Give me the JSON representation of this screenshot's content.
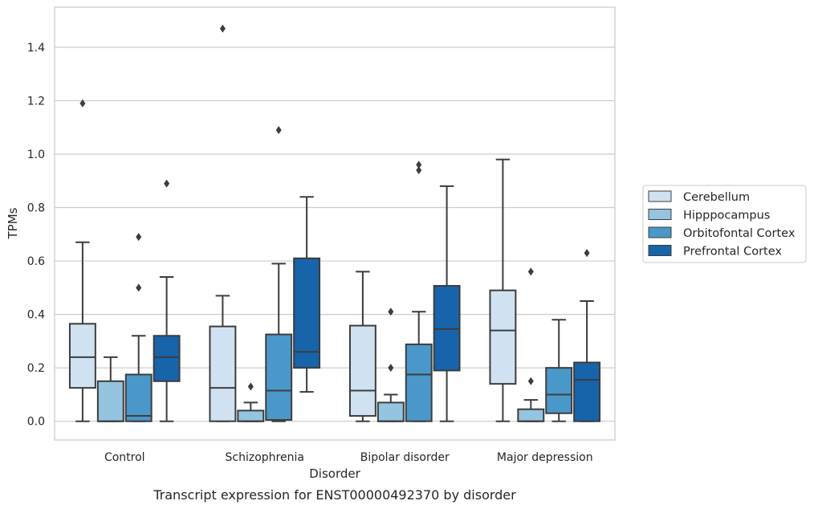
{
  "chart_data": {
    "type": "box",
    "caption": "Transcript expression for ENST00000492370 by disorder",
    "xlabel": "Disorder",
    "ylabel": "TPMs",
    "ylim": [
      -0.07,
      1.55
    ],
    "yticks": [
      "0.0",
      "0.2",
      "0.4",
      "0.6",
      "0.8",
      "1.0",
      "1.2",
      "1.4"
    ],
    "grid": "horizontal",
    "legend_position": "right",
    "categories": [
      "Control",
      "Schizophrenia",
      "Bipolar disorder",
      "Major depression"
    ],
    "series": [
      {
        "name": "Cerebellum",
        "color": "#d0e1f2",
        "boxes": [
          {
            "whisker_low": 0.0,
            "q1": 0.125,
            "median": 0.24,
            "q3": 0.365,
            "whisker_high": 0.67,
            "outliers": [
              1.19
            ]
          },
          {
            "whisker_low": 0.0,
            "q1": 0.0,
            "median": 0.125,
            "q3": 0.355,
            "whisker_high": 0.47,
            "outliers": [
              1.47
            ]
          },
          {
            "whisker_low": 0.0,
            "q1": 0.02,
            "median": 0.115,
            "q3": 0.358,
            "whisker_high": 0.56,
            "outliers": []
          },
          {
            "whisker_low": 0.0,
            "q1": 0.14,
            "median": 0.34,
            "q3": 0.49,
            "whisker_high": 0.98,
            "outliers": []
          }
        ]
      },
      {
        "name": "Hipppocampus",
        "color": "#94c4df",
        "boxes": [
          {
            "whisker_low": 0.0,
            "q1": 0.0,
            "median": 0.0,
            "q3": 0.15,
            "whisker_high": 0.24,
            "outliers": []
          },
          {
            "whisker_low": 0.0,
            "q1": 0.0,
            "median": 0.0,
            "q3": 0.04,
            "whisker_high": 0.07,
            "outliers": [
              0.13
            ]
          },
          {
            "whisker_low": 0.0,
            "q1": 0.0,
            "median": 0.0,
            "q3": 0.07,
            "whisker_high": 0.1,
            "outliers": [
              0.2,
              0.41
            ]
          },
          {
            "whisker_low": 0.0,
            "q1": 0.0,
            "median": 0.0,
            "q3": 0.045,
            "whisker_high": 0.08,
            "outliers": [
              0.15,
              0.56
            ]
          }
        ]
      },
      {
        "name": "Orbitofontal Cortex",
        "color": "#4a98c9",
        "boxes": [
          {
            "whisker_low": 0.0,
            "q1": 0.0,
            "median": 0.02,
            "q3": 0.175,
            "whisker_high": 0.32,
            "outliers": [
              0.5,
              0.69
            ]
          },
          {
            "whisker_low": 0.0,
            "q1": 0.005,
            "median": 0.115,
            "q3": 0.325,
            "whisker_high": 0.59,
            "outliers": [
              1.09
            ]
          },
          {
            "whisker_low": 0.0,
            "q1": 0.0,
            "median": 0.175,
            "q3": 0.288,
            "whisker_high": 0.41,
            "outliers": [
              0.94,
              0.96
            ]
          },
          {
            "whisker_low": 0.0,
            "q1": 0.03,
            "median": 0.1,
            "q3": 0.2,
            "whisker_high": 0.38,
            "outliers": []
          }
        ]
      },
      {
        "name": "Prefrontal Cortex",
        "color": "#1764ab",
        "boxes": [
          {
            "whisker_low": 0.0,
            "q1": 0.15,
            "median": 0.24,
            "q3": 0.32,
            "whisker_high": 0.54,
            "outliers": [
              0.89
            ]
          },
          {
            "whisker_low": 0.11,
            "q1": 0.2,
            "median": 0.26,
            "q3": 0.61,
            "whisker_high": 0.84,
            "outliers": []
          },
          {
            "whisker_low": 0.0,
            "q1": 0.19,
            "median": 0.345,
            "q3": 0.507,
            "whisker_high": 0.88,
            "outliers": []
          },
          {
            "whisker_low": 0.0,
            "q1": 0.0,
            "median": 0.155,
            "q3": 0.22,
            "whisker_high": 0.45,
            "outliers": [
              0.63
            ]
          }
        ]
      }
    ]
  }
}
